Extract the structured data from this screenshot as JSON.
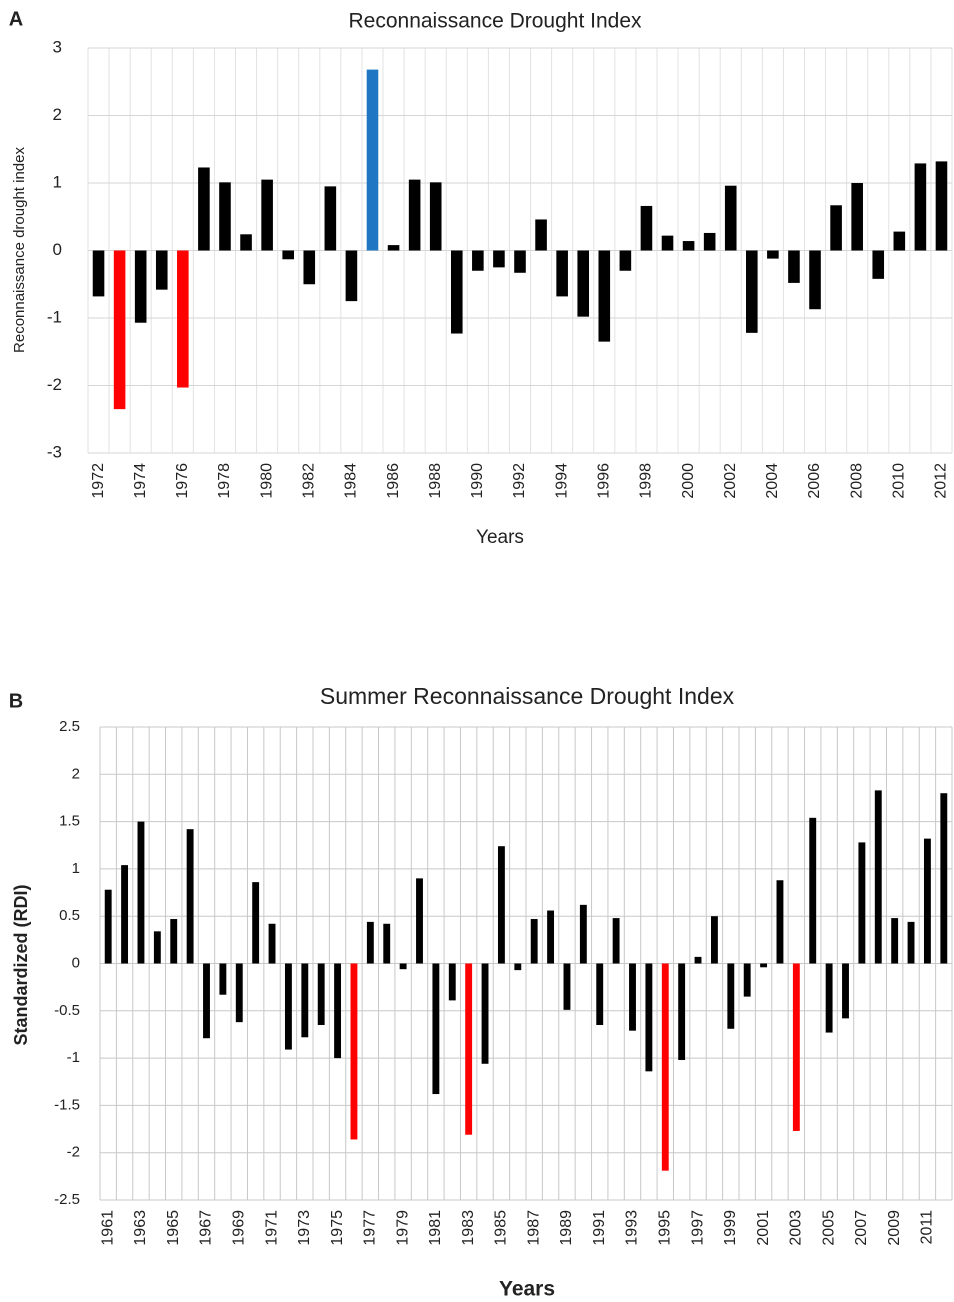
{
  "chart_data": [
    {
      "type": "bar",
      "panel": "A",
      "title": "Reconnaissance Drought Index",
      "x_label": "Years",
      "y_label": "Reconnaissance drought index",
      "categories": [
        "1972",
        null,
        "1974",
        null,
        "1976",
        null,
        "1978",
        null,
        "1980",
        null,
        "1982",
        null,
        "1984",
        null,
        "1986",
        null,
        "1988",
        null,
        "1990",
        null,
        "1992",
        null,
        "1994",
        null,
        "1996",
        null,
        "1998",
        null,
        "2000",
        null,
        "2002",
        null,
        "2004",
        null,
        "2006",
        null,
        "2008",
        null,
        "2010",
        null,
        "2012"
      ],
      "values": [
        -0.68,
        -2.35,
        -1.07,
        -0.58,
        -2.03,
        1.23,
        1.01,
        0.24,
        1.05,
        -0.13,
        -0.5,
        0.95,
        -0.75,
        2.68,
        0.08,
        1.05,
        1.01,
        -1.23,
        -0.3,
        -0.25,
        -0.33,
        0.46,
        -0.68,
        -0.98,
        -1.35,
        -0.3,
        0.66,
        0.22,
        0.14,
        0.26,
        0.96,
        -1.22,
        -0.12,
        -0.48,
        -0.87,
        0.67,
        1.0,
        -0.42,
        0.28,
        1.29,
        1.32
      ],
      "colors": [
        "#000000",
        "#ff0000",
        "#000000",
        "#000000",
        "#ff0000",
        "#000000",
        "#000000",
        "#000000",
        "#000000",
        "#000000",
        "#000000",
        "#000000",
        "#000000",
        "#1f77c4",
        "#000000",
        "#000000",
        "#000000",
        "#000000",
        "#000000",
        "#000000",
        "#000000",
        "#000000",
        "#000000",
        "#000000",
        "#000000",
        "#000000",
        "#000000",
        "#000000",
        "#000000",
        "#000000",
        "#000000",
        "#000000",
        "#000000",
        "#000000",
        "#000000",
        "#000000",
        "#000000",
        "#000000",
        "#000000",
        "#000000",
        "#000000"
      ],
      "ylim": [
        -3,
        3
      ],
      "yticks": [
        -3,
        -2,
        -1,
        0,
        1,
        2,
        3
      ],
      "grid": true
    },
    {
      "type": "bar",
      "panel": "B",
      "title": "Summer Reconnaissance Drought Index",
      "x_label": "Years",
      "y_label": "Standardized (RDI)",
      "categories": [
        "1961",
        null,
        "1963",
        null,
        "1965",
        null,
        "1967",
        null,
        "1969",
        null,
        "1971",
        null,
        "1973",
        null,
        "1975",
        null,
        "1977",
        null,
        "1979",
        null,
        "1981",
        null,
        "1983",
        null,
        "1985",
        null,
        "1987",
        null,
        "1989",
        null,
        "1991",
        null,
        "1993",
        null,
        "1995",
        null,
        "1997",
        null,
        "1999",
        null,
        "2001",
        null,
        "2003",
        null,
        "2005",
        null,
        "2007",
        null,
        "2009",
        null,
        "2011",
        null
      ],
      "values": [
        0.78,
        1.04,
        1.5,
        0.34,
        0.47,
        1.42,
        -0.79,
        -0.33,
        -0.62,
        0.86,
        0.42,
        -0.91,
        -0.78,
        -0.65,
        -1.0,
        -1.86,
        0.44,
        0.42,
        -0.06,
        0.9,
        -1.38,
        -0.39,
        -1.81,
        -1.06,
        1.24,
        -0.07,
        0.47,
        0.56,
        -0.49,
        0.62,
        -0.65,
        0.48,
        -0.71,
        -1.14,
        -2.19,
        -1.02,
        0.07,
        0.5,
        -0.69,
        -0.35,
        -0.04,
        0.88,
        -1.77,
        1.54,
        -0.73,
        -0.58,
        1.28,
        1.83,
        0.48,
        0.44,
        1.32,
        1.8
      ],
      "colors": [
        "#000000",
        "#000000",
        "#000000",
        "#000000",
        "#000000",
        "#000000",
        "#000000",
        "#000000",
        "#000000",
        "#000000",
        "#000000",
        "#000000",
        "#000000",
        "#000000",
        "#000000",
        "#ff0000",
        "#000000",
        "#000000",
        "#000000",
        "#000000",
        "#000000",
        "#000000",
        "#ff0000",
        "#000000",
        "#000000",
        "#000000",
        "#000000",
        "#000000",
        "#000000",
        "#000000",
        "#000000",
        "#000000",
        "#000000",
        "#000000",
        "#ff0000",
        "#000000",
        "#000000",
        "#000000",
        "#000000",
        "#000000",
        "#000000",
        "#000000",
        "#ff0000",
        "#000000",
        "#000000",
        "#000000",
        "#000000",
        "#000000",
        "#000000",
        "#000000",
        "#000000",
        "#000000"
      ],
      "ylim": [
        -2.5,
        2.5
      ],
      "yticks": [
        -2.5,
        -2,
        -1.5,
        -1,
        -0.5,
        0,
        0.5,
        1,
        1.5,
        2,
        2.5
      ],
      "grid": true
    }
  ]
}
